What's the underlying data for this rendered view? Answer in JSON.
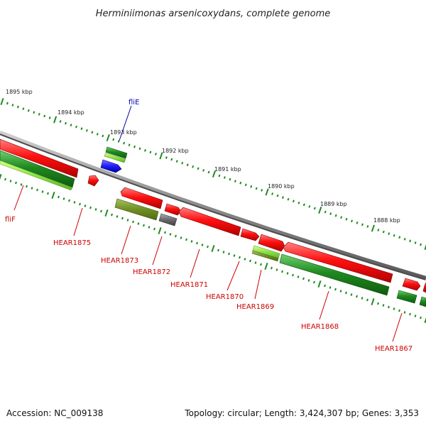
{
  "title": "Herminiimonas arsenicoxydans, complete genome",
  "footer": {
    "accession": "Accession: NC_009138",
    "topology": "Topology: circular; Length: 3,424,307 bp; Genes: 3,353"
  },
  "colors": {
    "backbone": "#8c8c8c",
    "forward_gene": "#ff1010",
    "reverse_gene": "#1f8a1f",
    "rna_gene": "#1c1cff",
    "light_green": "#7fe06a",
    "olive": "#6f8f24",
    "gray_gene": "#6a6a6a",
    "tick": "#1f8a1f",
    "label_red": "#cc0000",
    "label_blue": "#0000aa"
  },
  "kbp_ticks": [
    {
      "label": "1895 kbp"
    },
    {
      "label": "1894 kbp"
    },
    {
      "label": "1893 kbp"
    },
    {
      "label": "1892 kbp"
    },
    {
      "label": "1891 kbp"
    },
    {
      "label": "1890 kbp"
    },
    {
      "label": "1889 kbp"
    },
    {
      "label": "1888 kbp"
    }
  ],
  "gene_labels": [
    {
      "name": "fliE"
    },
    {
      "name": "fliF"
    },
    {
      "name": "HEAR1875"
    },
    {
      "name": "HEAR1873"
    },
    {
      "name": "HEAR1872"
    },
    {
      "name": "HEAR1871"
    },
    {
      "name": "HEAR1870"
    },
    {
      "name": "HEAR1869"
    },
    {
      "name": "HEAR1868"
    },
    {
      "name": "HEAR1867"
    }
  ]
}
